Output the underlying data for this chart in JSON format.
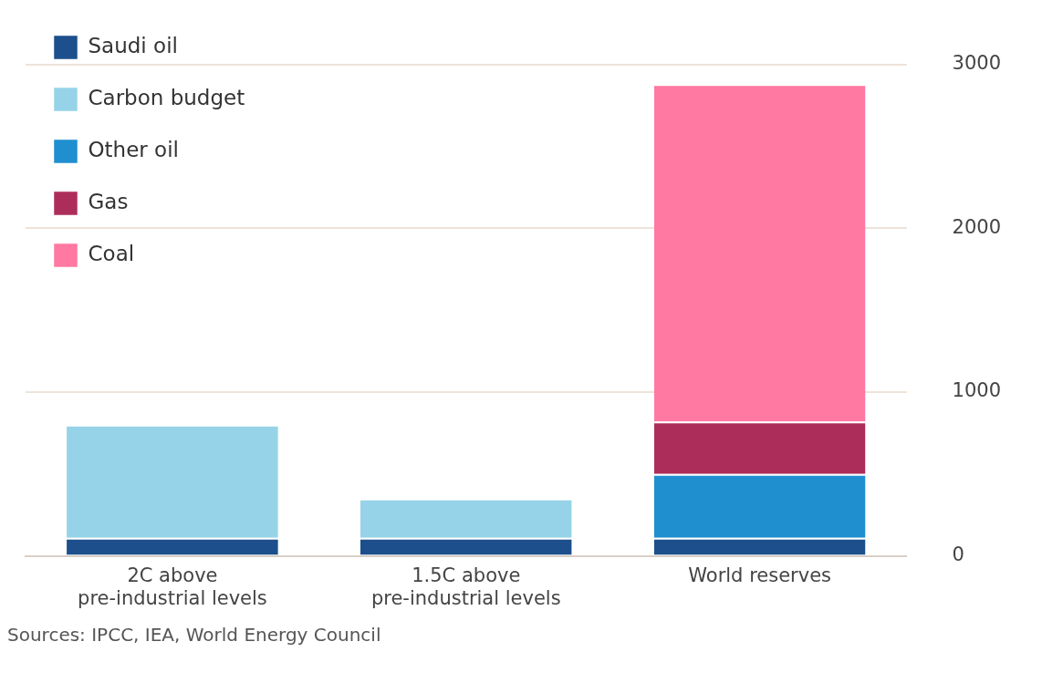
{
  "chart_data": {
    "type": "bar",
    "stacked": true,
    "categories": [
      "2C above pre-industrial levels",
      "1.5C above pre-industrial levels",
      "World reserves"
    ],
    "series": [
      {
        "name": "Saudi oil",
        "color": "#1c4f8c",
        "values": [
          110,
          110,
          110
        ]
      },
      {
        "name": "Carbon budget",
        "color": "#96d3e8",
        "values": [
          690,
          240,
          null
        ]
      },
      {
        "name": "Other oil",
        "color": "#1f8fd0",
        "values": [
          null,
          null,
          390
        ]
      },
      {
        "name": "Gas",
        "color": "#ad2d5a",
        "values": [
          null,
          null,
          320
        ]
      },
      {
        "name": "Coal",
        "color": "#ff79a2",
        "values": [
          null,
          null,
          2060
        ]
      }
    ],
    "ylim": [
      0,
      3000
    ],
    "yticks": [
      0,
      1000,
      2000,
      3000
    ],
    "grid": "y",
    "legend": "top left",
    "annotations": [
      "Sources: IPCC, IEA, World Energy Council"
    ]
  }
}
